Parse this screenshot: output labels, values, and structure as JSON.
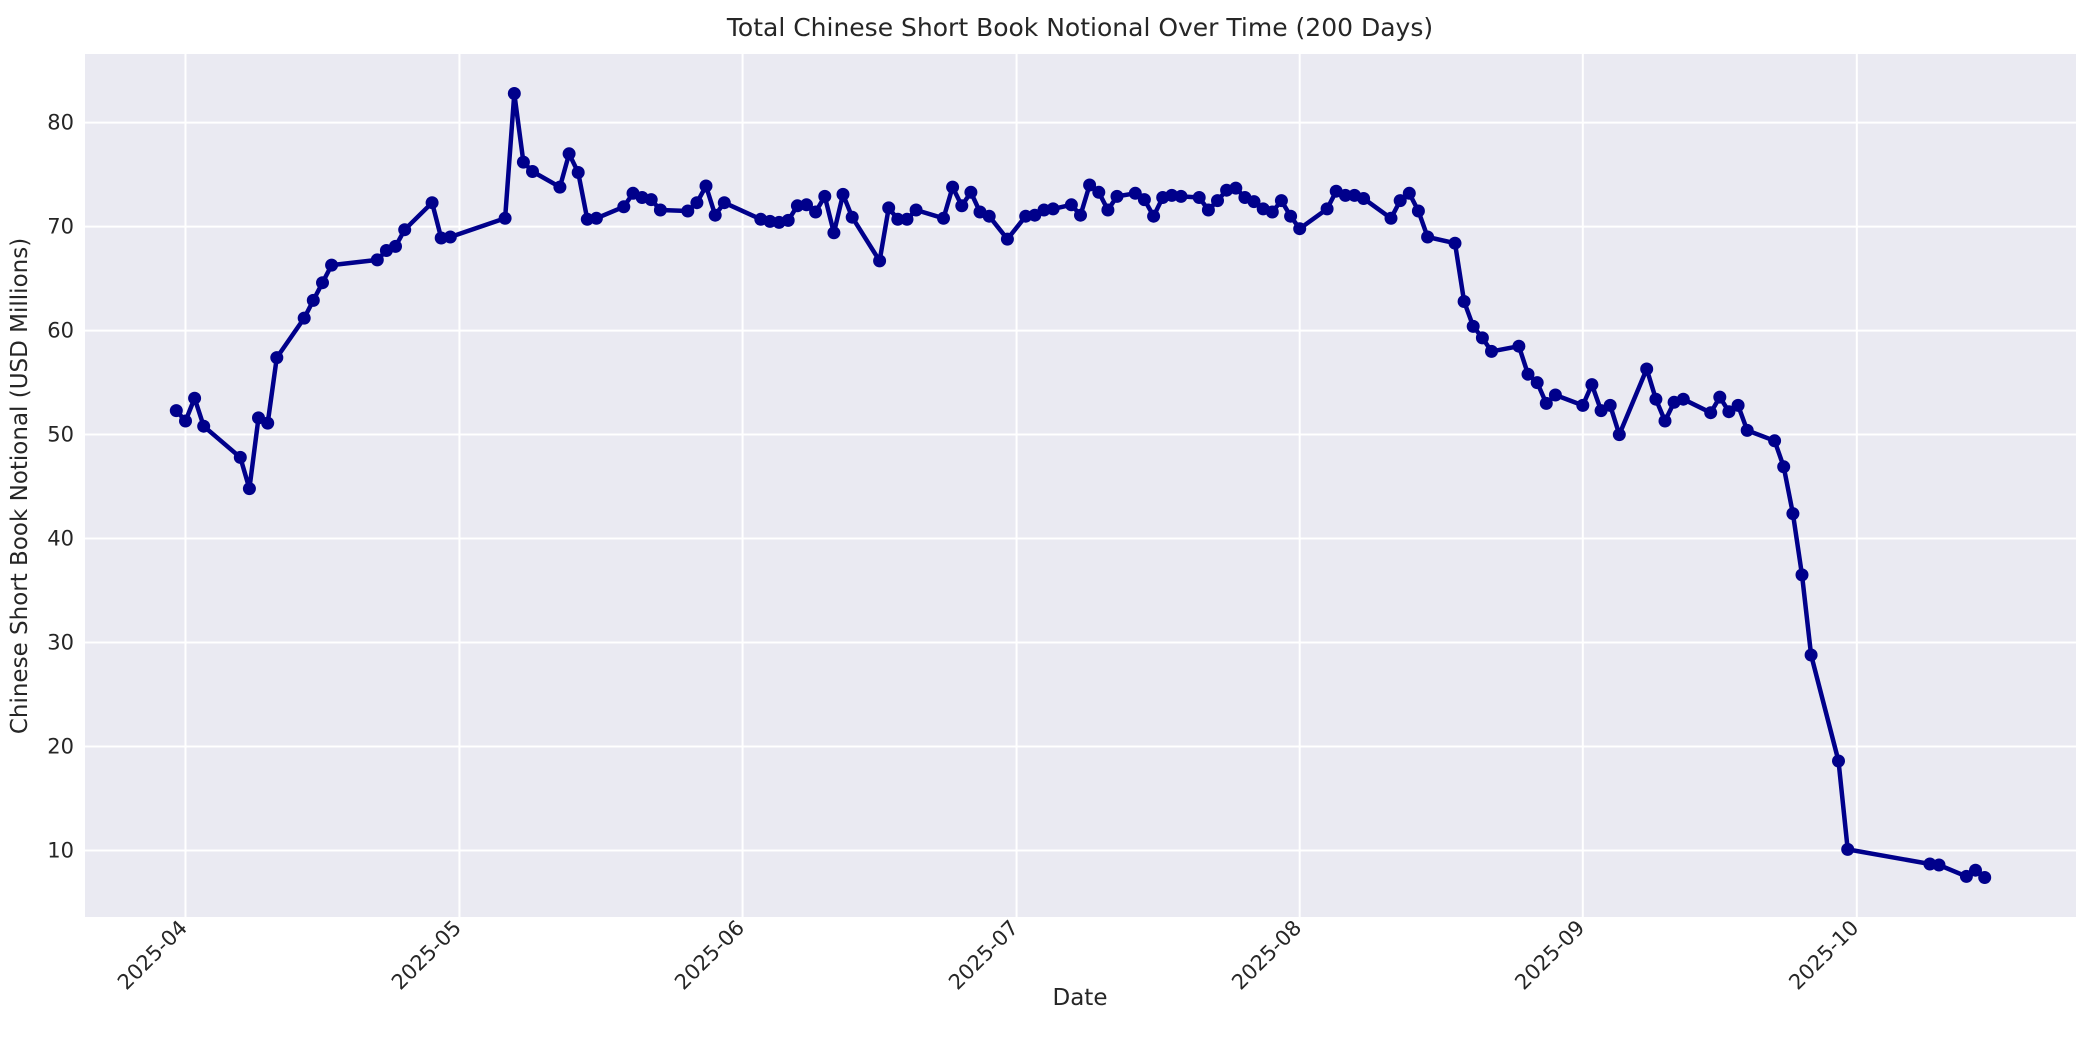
{
  "figure": {
    "colors": {
      "figure_bg": "#FFFFFF",
      "axes_bg": "#EAEAF2",
      "grid": "#FFFFFF",
      "line": "#00008B",
      "text": "#262626"
    }
  },
  "chart_data": {
    "type": "line",
    "title": "Total Chinese Short Book Notional Over Time (200 Days)",
    "xlabel": "Date",
    "ylabel": "Chinese Short Book Notional (USD Millions)",
    "legend": false,
    "grid": true,
    "marker": "o",
    "x_tick_labels": [
      "2025-04",
      "2025-05",
      "2025-06",
      "2025-07",
      "2025-08",
      "2025-09",
      "2025-10"
    ],
    "y_ticks": [
      10,
      20,
      30,
      40,
      50,
      60,
      70,
      80
    ],
    "ylim": [
      3.6,
      86.6
    ],
    "xlim_dates": [
      "2025-03-21",
      "2025-10-25"
    ],
    "series": [
      {
        "name": "chinese_short_book_notional_usd_millions",
        "dates": [
          "2025-03-31",
          "2025-04-01",
          "2025-04-02",
          "2025-04-03",
          "2025-04-07",
          "2025-04-08",
          "2025-04-09",
          "2025-04-10",
          "2025-04-11",
          "2025-04-14",
          "2025-04-15",
          "2025-04-16",
          "2025-04-17",
          "2025-04-22",
          "2025-04-23",
          "2025-04-24",
          "2025-04-25",
          "2025-04-28",
          "2025-04-29",
          "2025-04-30",
          "2025-05-06",
          "2025-05-07",
          "2025-05-08",
          "2025-05-09",
          "2025-05-12",
          "2025-05-13",
          "2025-05-14",
          "2025-05-15",
          "2025-05-16",
          "2025-05-19",
          "2025-05-20",
          "2025-05-21",
          "2025-05-22",
          "2025-05-23",
          "2025-05-26",
          "2025-05-27",
          "2025-05-28",
          "2025-05-29",
          "2025-05-30",
          "2025-06-03",
          "2025-06-04",
          "2025-06-05",
          "2025-06-06",
          "2025-06-07",
          "2025-06-08",
          "2025-06-09",
          "2025-06-10",
          "2025-06-11",
          "2025-06-12",
          "2025-06-13",
          "2025-06-16",
          "2025-06-17",
          "2025-06-18",
          "2025-06-19",
          "2025-06-20",
          "2025-06-23",
          "2025-06-24",
          "2025-06-25",
          "2025-06-26",
          "2025-06-27",
          "2025-06-28",
          "2025-06-30",
          "2025-07-02",
          "2025-07-03",
          "2025-07-04",
          "2025-07-05",
          "2025-07-07",
          "2025-07-08",
          "2025-07-09",
          "2025-07-10",
          "2025-07-11",
          "2025-07-12",
          "2025-07-14",
          "2025-07-15",
          "2025-07-16",
          "2025-07-17",
          "2025-07-18",
          "2025-07-19",
          "2025-07-21",
          "2025-07-22",
          "2025-07-23",
          "2025-07-24",
          "2025-07-25",
          "2025-07-26",
          "2025-07-27",
          "2025-07-28",
          "2025-07-29",
          "2025-07-30",
          "2025-07-31",
          "2025-08-01",
          "2025-08-04",
          "2025-08-05",
          "2025-08-06",
          "2025-08-07",
          "2025-08-08",
          "2025-08-11",
          "2025-08-12",
          "2025-08-13",
          "2025-08-14",
          "2025-08-15",
          "2025-08-18",
          "2025-08-19",
          "2025-08-20",
          "2025-08-21",
          "2025-08-22",
          "2025-08-25",
          "2025-08-26",
          "2025-08-27",
          "2025-08-28",
          "2025-08-29",
          "2025-09-01",
          "2025-09-02",
          "2025-09-03",
          "2025-09-04",
          "2025-09-05",
          "2025-09-08",
          "2025-09-09",
          "2025-09-10",
          "2025-09-11",
          "2025-09-12",
          "2025-09-15",
          "2025-09-16",
          "2025-09-17",
          "2025-09-18",
          "2025-09-19",
          "2025-09-22",
          "2025-09-23",
          "2025-09-24",
          "2025-09-25",
          "2025-09-26",
          "2025-09-29",
          "2025-09-30",
          "2025-10-09",
          "2025-10-10",
          "2025-10-13",
          "2025-10-14",
          "2025-10-15"
        ],
        "values": [
          52.3,
          51.3,
          53.5,
          50.8,
          47.8,
          44.8,
          51.6,
          51.1,
          57.4,
          61.2,
          62.9,
          64.6,
          66.3,
          66.8,
          67.7,
          68.1,
          69.7,
          72.3,
          68.9,
          69.0,
          70.8,
          82.8,
          76.2,
          75.3,
          73.8,
          77.0,
          75.2,
          70.7,
          70.8,
          71.9,
          73.2,
          72.8,
          72.6,
          71.6,
          71.5,
          72.3,
          73.9,
          71.1,
          72.3,
          70.7,
          70.5,
          70.4,
          70.6,
          72.0,
          72.1,
          71.4,
          72.9,
          69.4,
          73.1,
          70.9,
          66.7,
          71.8,
          70.7,
          70.7,
          71.6,
          70.8,
          73.8,
          72.0,
          73.3,
          71.4,
          71.0,
          68.8,
          71.0,
          71.1,
          71.6,
          71.7,
          72.1,
          71.1,
          74.0,
          73.3,
          71.6,
          72.9,
          73.2,
          72.6,
          71.0,
          72.8,
          73.0,
          72.9,
          72.8,
          71.6,
          72.5,
          73.5,
          73.7,
          72.8,
          72.4,
          71.7,
          71.4,
          72.5,
          71.0,
          69.8,
          71.7,
          73.4,
          73.0,
          73.0,
          72.7,
          70.8,
          72.5,
          73.2,
          71.5,
          69.0,
          68.4,
          62.8,
          60.4,
          59.3,
          58.0,
          58.5,
          55.8,
          55.0,
          53.0,
          53.8,
          52.8,
          54.8,
          52.3,
          52.8,
          50.0,
          56.3,
          53.4,
          51.3,
          53.1,
          53.4,
          52.1,
          53.6,
          52.2,
          52.8,
          50.4,
          49.4,
          46.9,
          42.4,
          36.5,
          28.8,
          18.6,
          10.1,
          8.7,
          8.6,
          7.5,
          8.1,
          7.4
        ]
      }
    ]
  }
}
